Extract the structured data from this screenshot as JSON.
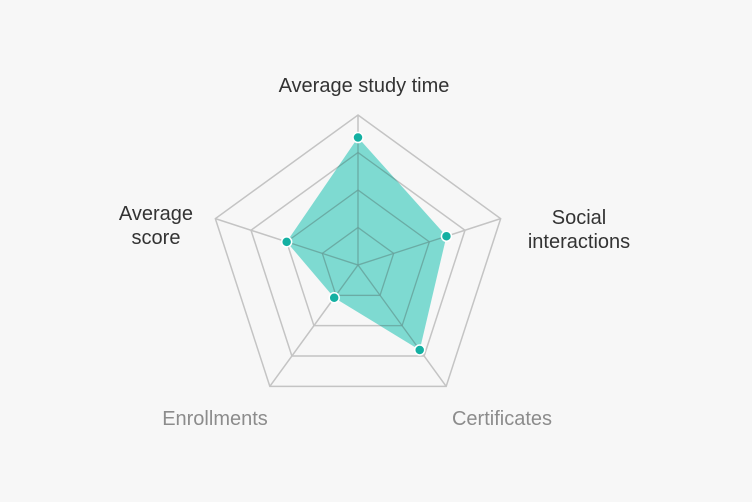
{
  "chart_data": {
    "type": "radar",
    "title": "",
    "axes": [
      {
        "label_lines": [
          "Average study time"
        ],
        "muted": false
      },
      {
        "label_lines": [
          "Social",
          "interactions"
        ],
        "muted": false
      },
      {
        "label_lines": [
          "Certificates"
        ],
        "muted": true
      },
      {
        "label_lines": [
          "Enrollments"
        ],
        "muted": true
      },
      {
        "label_lines": [
          "Average",
          "score"
        ],
        "muted": false
      }
    ],
    "rings": 4,
    "range": [
      0,
      100
    ],
    "series": [
      {
        "values": [
          85,
          62,
          70,
          27,
          50
        ]
      }
    ],
    "colors": {
      "fill": "#55d0c4",
      "fill_opacity": 0.75,
      "point": "#14b0a2",
      "point_stroke": "#ffffff",
      "grid": "#c4c4c4",
      "inner_grid": "#6a9c97"
    },
    "grid": true,
    "legend": "none"
  }
}
